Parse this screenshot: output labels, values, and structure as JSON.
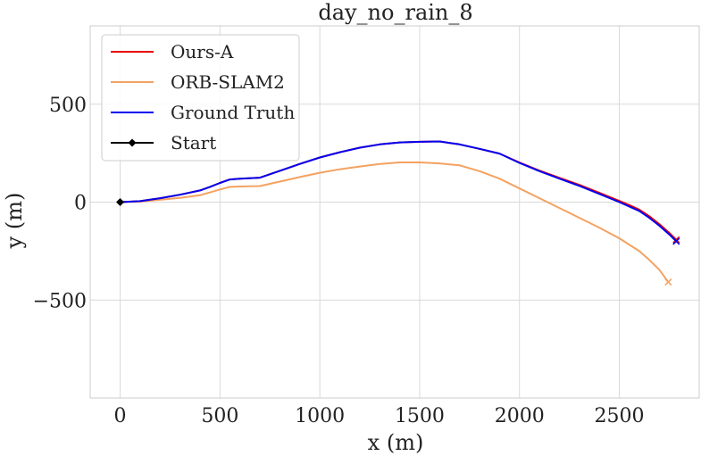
{
  "chart_data": {
    "type": "line",
    "title": "day_no_rain_8",
    "xlabel": "x (m)",
    "ylabel": "y (m)",
    "xlim": [
      -150,
      2900
    ],
    "ylim": [
      -1000,
      900
    ],
    "xticks": [
      0,
      500,
      1000,
      1500,
      2000,
      2500
    ],
    "yticks": [
      500,
      0,
      -500
    ],
    "xtick_labels": [
      "0",
      "500",
      "1000",
      "1500",
      "2000",
      "2500"
    ],
    "ytick_labels": [
      "500",
      "0",
      "−500"
    ],
    "grid": true,
    "legend_position": "top-left",
    "series": [
      {
        "name": "Ground Truth",
        "color": "#0000ee",
        "end_marker": "x",
        "x": [
          0,
          100,
          200,
          300,
          400,
          450,
          500,
          550,
          600,
          700,
          800,
          900,
          1000,
          1100,
          1200,
          1300,
          1400,
          1500,
          1600,
          1700,
          1800,
          1900,
          2000,
          2100,
          2200,
          2300,
          2400,
          2500,
          2550,
          2600,
          2650,
          2700,
          2750,
          2785
        ],
        "y": [
          0,
          5,
          20,
          38,
          60,
          78,
          98,
          116,
          120,
          125,
          160,
          195,
          228,
          255,
          278,
          295,
          305,
          308,
          310,
          295,
          272,
          248,
          200,
          158,
          120,
          83,
          42,
          0,
          -22,
          -45,
          -80,
          -120,
          -165,
          -200
        ]
      },
      {
        "name": "Ours-A",
        "color": "#e8000b",
        "end_marker": "x",
        "x": [
          0,
          100,
          200,
          300,
          400,
          450,
          500,
          550,
          600,
          700,
          800,
          900,
          1000,
          1100,
          1200,
          1300,
          1400,
          1500,
          1600,
          1700,
          1800,
          1900,
          2000,
          2100,
          2200,
          2300,
          2400,
          2500,
          2550,
          2600,
          2650,
          2700,
          2750,
          2785
        ],
        "y": [
          0,
          5,
          20,
          38,
          60,
          78,
          98,
          116,
          120,
          125,
          160,
          195,
          228,
          255,
          278,
          295,
          305,
          308,
          310,
          295,
          272,
          248,
          202,
          161,
          124,
          88,
          48,
          6,
          -15,
          -38,
          -72,
          -112,
          -157,
          -192
        ]
      },
      {
        "name": "ORB-SLAM2",
        "color": "#f4a261",
        "end_marker": "x",
        "x": [
          0,
          100,
          200,
          300,
          400,
          450,
          500,
          550,
          600,
          700,
          800,
          900,
          1000,
          1100,
          1200,
          1300,
          1400,
          1500,
          1600,
          1700,
          1800,
          1900,
          2000,
          2100,
          2200,
          2300,
          2400,
          2500,
          2600,
          2650,
          2700,
          2745
        ],
        "y": [
          0,
          3,
          12,
          22,
          35,
          50,
          65,
          78,
          80,
          82,
          105,
          128,
          150,
          168,
          182,
          195,
          203,
          203,
          198,
          188,
          158,
          120,
          70,
          20,
          -30,
          -80,
          -130,
          -185,
          -250,
          -295,
          -345,
          -408
        ]
      },
      {
        "name": "Start",
        "color": "#000000",
        "marker": "diamond",
        "x": [
          0
        ],
        "y": [
          0
        ]
      }
    ],
    "legend_order": [
      "Ours-A",
      "ORB-SLAM2",
      "Ground Truth",
      "Start"
    ]
  }
}
